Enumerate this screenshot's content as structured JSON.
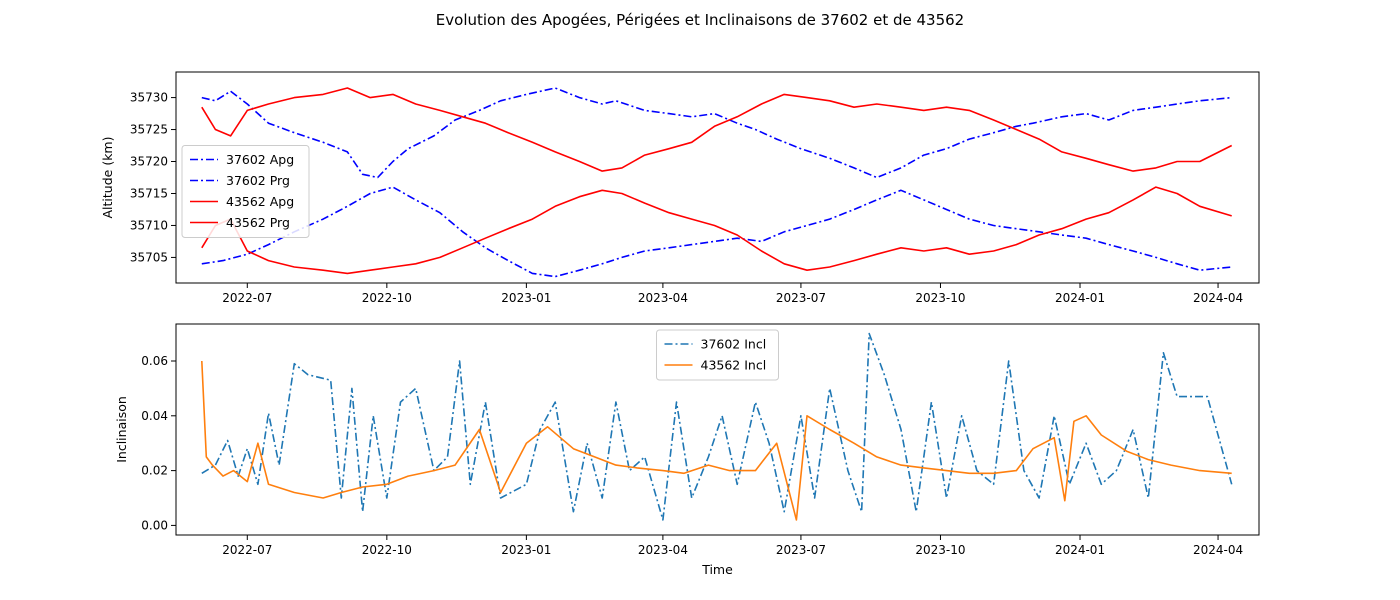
{
  "chart_data": {
    "title": "Evolution des Apogées, Périgées et Inclinaisons de 37602 et de 43562",
    "x_tick_labels": [
      "2022-07",
      "2022-10",
      "2023-01",
      "2023-04",
      "2023-07",
      "2023-10",
      "2024-01",
      "2024-04"
    ],
    "x_tick_dates": [
      "2022-07-01",
      "2022-10-01",
      "2023-01-01",
      "2023-04-01",
      "2023-07-01",
      "2023-10-01",
      "2024-01-01",
      "2024-04-01"
    ],
    "xlim": [
      "2022-05-15",
      "2024-04-28"
    ],
    "colors": {
      "red": "#ff0000",
      "blue": "#0000ff",
      "tab_blue": "#1f77b4",
      "tab_orange": "#ff7f0e"
    },
    "panels": [
      {
        "type": "line",
        "ylabel": "Altitude (km)",
        "xlabel": "",
        "ylim": [
          35701.0,
          35734.0
        ],
        "yticks": [
          35705,
          35710,
          35715,
          35720,
          35725,
          35730
        ],
        "legend_position": "center-left",
        "series": [
          {
            "name": "37602 Apg",
            "color": "#0000ff",
            "style": "dashdot",
            "x": [
              "2022-06-01",
              "2022-06-10",
              "2022-06-20",
              "2022-07-01",
              "2022-07-15",
              "2022-08-01",
              "2022-08-20",
              "2022-09-05",
              "2022-09-15",
              "2022-09-25",
              "2022-10-05",
              "2022-10-15",
              "2022-11-01",
              "2022-11-15",
              "2022-12-01",
              "2022-12-15",
              "2023-01-01",
              "2023-01-20",
              "2023-02-05",
              "2023-02-20",
              "2023-03-01",
              "2023-03-20",
              "2023-04-05",
              "2023-04-20",
              "2023-05-05",
              "2023-05-20",
              "2023-06-01",
              "2023-06-15",
              "2023-07-01",
              "2023-07-20",
              "2023-08-05",
              "2023-08-20",
              "2023-09-05",
              "2023-09-20",
              "2023-10-05",
              "2023-10-20",
              "2023-11-05",
              "2023-11-20",
              "2023-12-01",
              "2023-12-20",
              "2024-01-05",
              "2024-01-20",
              "2024-02-05",
              "2024-02-20",
              "2024-03-05",
              "2024-03-20",
              "2024-04-10"
            ],
            "y": [
              35730.0,
              35729.5,
              35731.0,
              35729.0,
              35726.0,
              35724.5,
              35723.0,
              35721.5,
              35718.0,
              35717.5,
              35720.0,
              35722.0,
              35724.0,
              35726.5,
              35728.0,
              35729.5,
              35730.5,
              35731.5,
              35730.0,
              35729.0,
              35729.5,
              35728.0,
              35727.5,
              35727.0,
              35727.5,
              35726.0,
              35725.0,
              35723.5,
              35722.0,
              35720.5,
              35719.0,
              35717.5,
              35719.0,
              35721.0,
              35722.0,
              35723.5,
              35724.5,
              35725.5,
              35726.0,
              35727.0,
              35727.5,
              35726.5,
              35728.0,
              35728.5,
              35729.0,
              35729.5,
              35730.0
            ]
          },
          {
            "name": "37602 Prg",
            "color": "#0000ff",
            "style": "dashdot",
            "x": [
              "2022-06-01",
              "2022-06-15",
              "2022-07-01",
              "2022-07-15",
              "2022-08-01",
              "2022-08-20",
              "2022-09-05",
              "2022-09-20",
              "2022-10-05",
              "2022-10-20",
              "2022-11-05",
              "2022-11-20",
              "2022-12-05",
              "2022-12-20",
              "2023-01-05",
              "2023-01-20",
              "2023-02-05",
              "2023-02-20",
              "2023-03-05",
              "2023-03-20",
              "2023-04-05",
              "2023-04-20",
              "2023-05-05",
              "2023-05-20",
              "2023-06-05",
              "2023-06-20",
              "2023-07-05",
              "2023-07-20",
              "2023-08-05",
              "2023-08-20",
              "2023-09-05",
              "2023-09-20",
              "2023-10-05",
              "2023-10-20",
              "2023-11-05",
              "2023-11-20",
              "2023-12-05",
              "2023-12-20",
              "2024-01-05",
              "2024-01-20",
              "2024-02-05",
              "2024-02-20",
              "2024-03-05",
              "2024-03-20",
              "2024-04-10"
            ],
            "y": [
              35704.0,
              35704.5,
              35705.5,
              35707.0,
              35709.0,
              35711.0,
              35713.0,
              35715.0,
              35716.0,
              35714.0,
              35712.0,
              35709.0,
              35706.5,
              35704.5,
              35702.5,
              35702.0,
              35703.0,
              35704.0,
              35705.0,
              35706.0,
              35706.5,
              35707.0,
              35707.5,
              35708.0,
              35707.5,
              35709.0,
              35710.0,
              35711.0,
              35712.5,
              35714.0,
              35715.5,
              35714.0,
              35712.5,
              35711.0,
              35710.0,
              35709.5,
              35709.0,
              35708.5,
              35708.0,
              35707.0,
              35706.0,
              35705.0,
              35704.0,
              35703.0,
              35703.5
            ]
          },
          {
            "name": "43562 Apg",
            "color": "#ff0000",
            "style": "solid",
            "x": [
              "2022-06-01",
              "2022-06-10",
              "2022-06-20",
              "2022-07-01",
              "2022-07-15",
              "2022-08-01",
              "2022-08-20",
              "2022-09-05",
              "2022-09-20",
              "2022-10-05",
              "2022-10-20",
              "2022-11-05",
              "2022-11-20",
              "2022-12-05",
              "2022-12-20",
              "2023-01-05",
              "2023-01-20",
              "2023-02-05",
              "2023-02-20",
              "2023-03-05",
              "2023-03-20",
              "2023-04-05",
              "2023-04-20",
              "2023-05-05",
              "2023-05-20",
              "2023-06-05",
              "2023-06-20",
              "2023-07-05",
              "2023-07-20",
              "2023-08-05",
              "2023-08-20",
              "2023-09-05",
              "2023-09-20",
              "2023-10-05",
              "2023-10-20",
              "2023-11-05",
              "2023-11-20",
              "2023-12-05",
              "2023-12-20",
              "2024-01-05",
              "2024-01-20",
              "2024-02-05",
              "2024-02-20",
              "2024-03-05",
              "2024-03-20",
              "2024-04-10"
            ],
            "y": [
              35728.5,
              35725.0,
              35724.0,
              35728.0,
              35729.0,
              35730.0,
              35730.5,
              35731.5,
              35730.0,
              35730.5,
              35729.0,
              35728.0,
              35727.0,
              35726.0,
              35724.5,
              35723.0,
              35721.5,
              35720.0,
              35718.5,
              35719.0,
              35721.0,
              35722.0,
              35723.0,
              35725.5,
              35727.0,
              35729.0,
              35730.5,
              35730.0,
              35729.5,
              35728.5,
              35729.0,
              35728.5,
              35728.0,
              35728.5,
              35728.0,
              35726.5,
              35725.0,
              35723.5,
              35721.5,
              35720.5,
              35719.5,
              35718.5,
              35719.0,
              35720.0,
              35720.0,
              35722.5
            ]
          },
          {
            "name": "43562 Prg",
            "color": "#ff0000",
            "style": "solid",
            "x": [
              "2022-06-01",
              "2022-06-10",
              "2022-06-20",
              "2022-07-01",
              "2022-07-15",
              "2022-08-01",
              "2022-08-20",
              "2022-09-05",
              "2022-09-20",
              "2022-10-05",
              "2022-10-20",
              "2022-11-05",
              "2022-11-20",
              "2022-12-05",
              "2022-12-20",
              "2023-01-05",
              "2023-01-20",
              "2023-02-05",
              "2023-02-20",
              "2023-03-05",
              "2023-03-20",
              "2023-04-05",
              "2023-04-20",
              "2023-05-05",
              "2023-05-20",
              "2023-06-05",
              "2023-06-20",
              "2023-07-05",
              "2023-07-20",
              "2023-08-05",
              "2023-08-20",
              "2023-09-05",
              "2023-09-20",
              "2023-10-05",
              "2023-10-20",
              "2023-11-05",
              "2023-11-20",
              "2023-12-05",
              "2023-12-20",
              "2024-01-05",
              "2024-01-20",
              "2024-02-05",
              "2024-02-20",
              "2024-03-05",
              "2024-03-20",
              "2024-04-10"
            ],
            "y": [
              35706.5,
              35710.0,
              35711.0,
              35706.0,
              35704.5,
              35703.5,
              35703.0,
              35702.5,
              35703.0,
              35703.5,
              35704.0,
              35705.0,
              35706.5,
              35708.0,
              35709.5,
              35711.0,
              35713.0,
              35714.5,
              35715.5,
              35715.0,
              35713.5,
              35712.0,
              35711.0,
              35710.0,
              35708.5,
              35706.0,
              35704.0,
              35703.0,
              35703.5,
              35704.5,
              35705.5,
              35706.5,
              35706.0,
              35706.5,
              35705.5,
              35706.0,
              35707.0,
              35708.5,
              35709.5,
              35711.0,
              35712.0,
              35714.0,
              35716.0,
              35715.0,
              35713.0,
              35711.5
            ]
          }
        ]
      },
      {
        "type": "line",
        "ylabel": "Inclinaison",
        "xlabel": "Time",
        "ylim": [
          -0.0035,
          0.0735
        ],
        "yticks": [
          0.0,
          0.02,
          0.04,
          0.06
        ],
        "ytick_labels": [
          "0.00",
          "0.02",
          "0.04",
          "0.06"
        ],
        "legend_position": "upper-center",
        "series": [
          {
            "name": "37602 Incl",
            "color": "#1f77b4",
            "style": "dashdot",
            "x": [
              "2022-06-01",
              "2022-06-10",
              "2022-06-18",
              "2022-06-25",
              "2022-07-01",
              "2022-07-08",
              "2022-07-15",
              "2022-07-22",
              "2022-08-01",
              "2022-08-10",
              "2022-08-25",
              "2022-09-01",
              "2022-09-08",
              "2022-09-15",
              "2022-09-22",
              "2022-10-01",
              "2022-10-10",
              "2022-10-20",
              "2022-11-01",
              "2022-11-10",
              "2022-11-18",
              "2022-11-25",
              "2022-12-05",
              "2022-12-15",
              "2023-01-01",
              "2023-01-10",
              "2023-01-20",
              "2023-02-01",
              "2023-02-10",
              "2023-02-20",
              "2023-03-01",
              "2023-03-10",
              "2023-03-20",
              "2023-04-01",
              "2023-04-10",
              "2023-04-20",
              "2023-05-01",
              "2023-05-10",
              "2023-05-20",
              "2023-06-01",
              "2023-06-10",
              "2023-06-20",
              "2023-07-01",
              "2023-07-10",
              "2023-07-20",
              "2023-08-01",
              "2023-08-10",
              "2023-08-15",
              "2023-08-25",
              "2023-09-05",
              "2023-09-15",
              "2023-09-25",
              "2023-10-05",
              "2023-10-15",
              "2023-10-25",
              "2023-11-05",
              "2023-11-15",
              "2023-11-25",
              "2023-12-05",
              "2023-12-15",
              "2023-12-25",
              "2024-01-05",
              "2024-01-15",
              "2024-01-25",
              "2024-02-05",
              "2024-02-15",
              "2024-02-25",
              "2024-03-05",
              "2024-03-25",
              "2024-04-10"
            ],
            "y": [
              0.019,
              0.022,
              0.031,
              0.018,
              0.028,
              0.015,
              0.041,
              0.022,
              0.059,
              0.055,
              0.053,
              0.01,
              0.05,
              0.005,
              0.04,
              0.01,
              0.045,
              0.05,
              0.02,
              0.025,
              0.06,
              0.015,
              0.045,
              0.01,
              0.015,
              0.035,
              0.045,
              0.005,
              0.03,
              0.01,
              0.045,
              0.02,
              0.025,
              0.002,
              0.045,
              0.01,
              0.025,
              0.04,
              0.015,
              0.045,
              0.03,
              0.005,
              0.04,
              0.01,
              0.05,
              0.02,
              0.005,
              0.07,
              0.055,
              0.035,
              0.005,
              0.045,
              0.01,
              0.04,
              0.02,
              0.015,
              0.06,
              0.02,
              0.01,
              0.04,
              0.015,
              0.03,
              0.015,
              0.02,
              0.035,
              0.01,
              0.063,
              0.047,
              0.047,
              0.015
            ]
          },
          {
            "name": "43562 Incl",
            "color": "#ff7f0e",
            "style": "solid",
            "x": [
              "2022-06-01",
              "2022-06-04",
              "2022-06-08",
              "2022-06-15",
              "2022-06-22",
              "2022-07-01",
              "2022-07-08",
              "2022-07-15",
              "2022-08-01",
              "2022-08-20",
              "2022-09-01",
              "2022-09-15",
              "2022-10-01",
              "2022-10-15",
              "2022-11-01",
              "2022-11-15",
              "2022-12-01",
              "2022-12-15",
              "2023-01-01",
              "2023-01-15",
              "2023-02-01",
              "2023-02-15",
              "2023-03-01",
              "2023-03-15",
              "2023-04-01",
              "2023-04-15",
              "2023-05-01",
              "2023-05-15",
              "2023-06-01",
              "2023-06-15",
              "2023-06-28",
              "2023-07-05",
              "2023-07-20",
              "2023-08-05",
              "2023-08-20",
              "2023-09-05",
              "2023-09-20",
              "2023-10-05",
              "2023-10-20",
              "2023-11-05",
              "2023-11-20",
              "2023-12-01",
              "2023-12-15",
              "2023-12-22",
              "2023-12-28",
              "2024-01-05",
              "2024-01-15",
              "2024-02-01",
              "2024-02-15",
              "2024-03-01",
              "2024-03-20",
              "2024-04-10"
            ],
            "y": [
              0.06,
              0.025,
              0.022,
              0.018,
              0.02,
              0.016,
              0.03,
              0.015,
              0.012,
              0.01,
              0.012,
              0.014,
              0.015,
              0.018,
              0.02,
              0.022,
              0.035,
              0.012,
              0.03,
              0.036,
              0.028,
              0.025,
              0.022,
              0.021,
              0.02,
              0.019,
              0.022,
              0.02,
              0.02,
              0.03,
              0.002,
              0.04,
              0.035,
              0.03,
              0.025,
              0.022,
              0.021,
              0.02,
              0.019,
              0.019,
              0.02,
              0.028,
              0.032,
              0.009,
              0.038,
              0.04,
              0.033,
              0.027,
              0.024,
              0.022,
              0.02,
              0.019
            ]
          }
        ]
      }
    ]
  }
}
